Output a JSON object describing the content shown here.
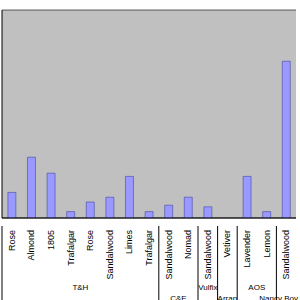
{
  "chart_data": {
    "type": "bar",
    "categories": [
      "Rose",
      "Almond",
      "1805",
      "Trafalgar",
      "Rose",
      "Sandalwood",
      "Limes",
      "Trafalgar",
      "Sandalwood",
      "Nomad",
      "Sandalwood",
      "Vetiver",
      "Lavender",
      "Lemon",
      "Sandalwood"
    ],
    "category_groups": [
      "T&H",
      "T&H",
      "T&H",
      "T&H",
      "T&H",
      "T&H",
      "T&H",
      "T&H",
      "C&E",
      "C&E",
      "Vulfix",
      "Arran",
      "AOS",
      "AOS",
      "Nancy Boy"
    ],
    "values": [
      0.8,
      1.9,
      1.4,
      0.2,
      0.5,
      0.65,
      1.3,
      0.2,
      0.4,
      0.65,
      0.35,
      0,
      1.3,
      0.2,
      4.9
    ],
    "color": "#9999ff",
    "ylim": [
      0,
      6.5
    ],
    "yticks": [
      0,
      1,
      2,
      3,
      4,
      5,
      6
    ],
    "grid": true,
    "tick_labels": "x"
  }
}
